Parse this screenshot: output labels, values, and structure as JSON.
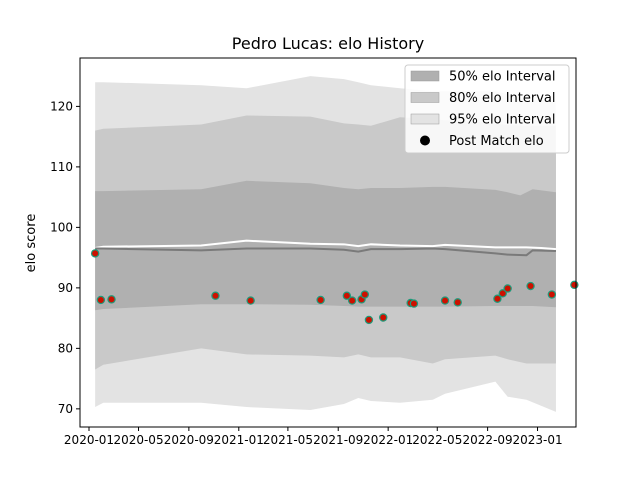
{
  "chart_data": {
    "type": "line",
    "title": "Pedro Lucas: elo History",
    "ylabel": "elo score",
    "xlabel": "",
    "ylim": [
      67,
      128
    ],
    "xlim": [
      "2019-12-10",
      "2023-04-05"
    ],
    "yticks": [
      70,
      80,
      90,
      100,
      110,
      120
    ],
    "xticks": [
      "2020-01",
      "2020-05",
      "2020-09",
      "2021-01",
      "2021-05",
      "2021-09",
      "2022-01",
      "2022-05",
      "2022-09",
      "2023-01"
    ],
    "bands": [
      {
        "name": "95% elo Interval",
        "color": "#e3e3e3",
        "dates": [
          "2020-01-16",
          "2020-02-05",
          "2020-10-01",
          "2021-01-20",
          "2021-06-25",
          "2021-09-15",
          "2021-10-20",
          "2021-11-20",
          "2022-01-30",
          "2022-04-20",
          "2022-05-20",
          "2022-09-20",
          "2022-10-20",
          "2022-12-05",
          "2023-02-15"
        ],
        "upper": [
          124,
          124,
          123.5,
          123,
          125,
          124.5,
          124,
          123.5,
          123,
          122.5,
          122.5,
          122.5,
          122,
          121,
          121
        ],
        "lower": [
          70.3,
          71,
          71,
          70.3,
          69.8,
          70.8,
          71.8,
          71.3,
          71,
          71.5,
          72.5,
          74.5,
          72,
          71.5,
          69.5
        ]
      },
      {
        "name": "80% elo Interval",
        "color": "#c9c9c9",
        "dates": [
          "2020-01-16",
          "2020-02-05",
          "2020-10-01",
          "2021-01-20",
          "2021-06-25",
          "2021-09-15",
          "2021-10-20",
          "2021-11-20",
          "2022-01-30",
          "2022-04-20",
          "2022-05-20",
          "2022-09-20",
          "2022-10-20",
          "2022-12-05",
          "2023-02-15"
        ],
        "upper": [
          116,
          116.3,
          117,
          118.5,
          118.3,
          117.2,
          117,
          116.8,
          118.2,
          117.9,
          117.7,
          117.2,
          116.9,
          116.8,
          116.8
        ],
        "lower": [
          76.5,
          77.3,
          80,
          79,
          78.8,
          78.5,
          79,
          78.5,
          78.5,
          77.5,
          78.2,
          78.8,
          78.2,
          77.5,
          77.5
        ]
      },
      {
        "name": "50% elo Interval",
        "color": "#b0b0b0",
        "dates": [
          "2020-01-16",
          "2020-02-05",
          "2020-10-01",
          "2021-01-20",
          "2021-06-25",
          "2021-09-15",
          "2021-10-20",
          "2021-11-20",
          "2022-01-30",
          "2022-04-20",
          "2022-05-20",
          "2022-09-20",
          "2022-10-20",
          "2022-11-20",
          "2022-12-20",
          "2023-02-15"
        ],
        "upper": [
          106,
          106,
          106.3,
          107.7,
          107.3,
          106.5,
          106.3,
          106.5,
          106.5,
          106.7,
          106.7,
          106.2,
          105.8,
          105.3,
          106.3,
          105.8
        ],
        "lower": [
          86.3,
          86.5,
          87.3,
          87.3,
          87.2,
          87,
          86.9,
          86.9,
          86.9,
          86.9,
          86.9,
          87,
          87,
          87,
          87,
          86.8
        ]
      }
    ],
    "lines": [
      {
        "name": "elo",
        "color": "#ffffff",
        "dates": [
          "2020-01-16",
          "2020-02-05",
          "2020-10-01",
          "2021-01-20",
          "2021-06-25",
          "2021-09-15",
          "2021-10-20",
          "2021-11-20",
          "2022-01-30",
          "2022-04-20",
          "2022-05-20",
          "2022-09-20",
          "2022-12-05",
          "2023-01-10",
          "2023-02-15"
        ],
        "values": [
          96.6,
          96.8,
          97,
          97.8,
          97.3,
          97.2,
          96.9,
          97.2,
          97,
          96.9,
          97.1,
          96.7,
          96.7,
          96.6,
          96.4
        ]
      },
      {
        "name": "elo-median",
        "color": "#7a7a7a",
        "dates": [
          "2020-01-16",
          "2020-02-05",
          "2020-10-01",
          "2021-01-20",
          "2021-06-25",
          "2021-09-15",
          "2021-10-20",
          "2021-11-20",
          "2022-01-30",
          "2022-04-20",
          "2022-05-20",
          "2022-09-20",
          "2022-10-20",
          "2022-12-05",
          "2022-12-20",
          "2023-02-15"
        ],
        "values": [
          96.5,
          96.5,
          96.2,
          96.5,
          96.5,
          96.3,
          96,
          96.4,
          96.4,
          96.5,
          96.4,
          95.7,
          95.5,
          95.4,
          96.2,
          96.1
        ]
      }
    ],
    "points": {
      "name": "Post Match elo",
      "fill": "#cc1100",
      "stroke": "#1f9a7a",
      "dates": [
        "2020-01-16",
        "2020-01-30",
        "2020-02-25",
        "2020-11-05",
        "2021-01-30",
        "2021-07-20",
        "2021-09-22",
        "2021-10-05",
        "2021-10-28",
        "2021-11-05",
        "2021-11-15",
        "2021-12-20",
        "2022-02-25",
        "2022-03-05",
        "2022-05-20",
        "2022-06-20",
        "2022-09-25",
        "2022-10-08",
        "2022-10-20",
        "2022-12-15",
        "2023-02-05",
        "2023-04-01"
      ],
      "values": [
        95.7,
        88,
        88.1,
        88.7,
        87.9,
        88,
        88.7,
        87.9,
        88.1,
        88.9,
        84.7,
        85.1,
        87.5,
        87.4,
        87.9,
        87.6,
        88.2,
        89.1,
        89.9,
        90.3,
        88.9,
        90.5
      ]
    },
    "legend": {
      "placement": "top-right",
      "entries": [
        {
          "label": "50% elo Interval",
          "kind": "patch",
          "color": "#b0b0b0"
        },
        {
          "label": "80% elo Interval",
          "kind": "patch",
          "color": "#c9c9c9"
        },
        {
          "label": "95% elo Interval",
          "kind": "patch",
          "color": "#e3e3e3"
        },
        {
          "label": "Post Match elo",
          "kind": "marker",
          "color": "#000000"
        }
      ]
    }
  }
}
